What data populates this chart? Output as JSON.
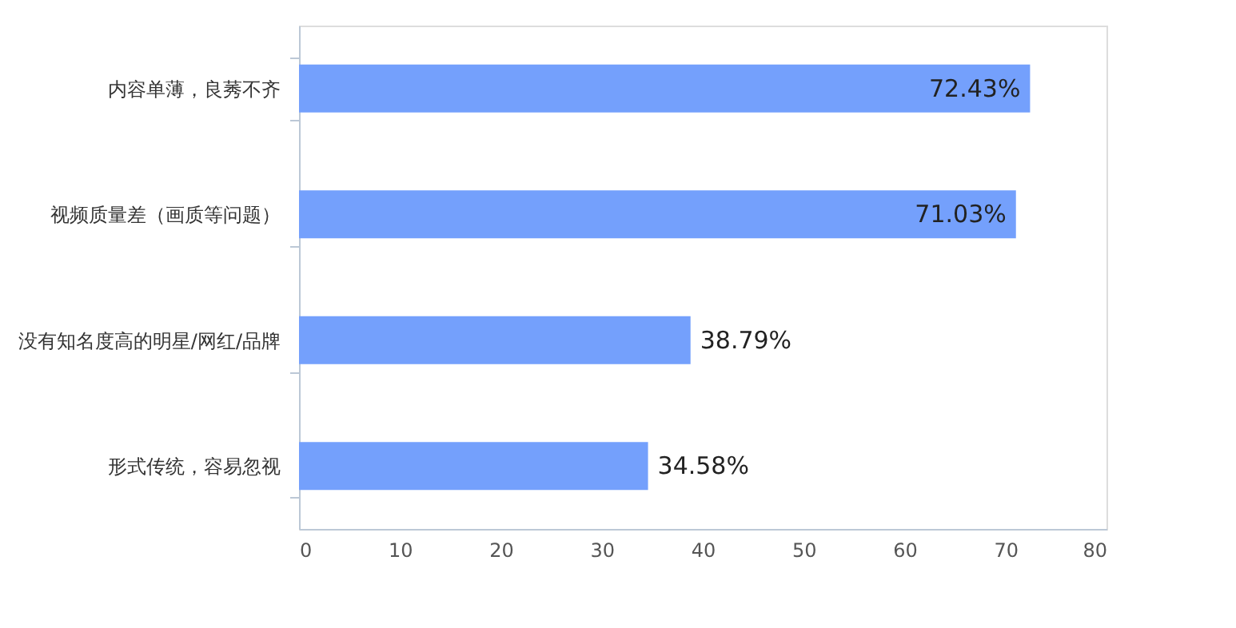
{
  "chart_data": {
    "type": "bar",
    "orientation": "horizontal",
    "categories": [
      "内容单薄，良莠不齐",
      "视频质量差（画质等问题）",
      "没有知名度高的明星/网红/品牌",
      "形式传统，容易忽视"
    ],
    "values": [
      72.43,
      71.03,
      38.79,
      34.58
    ],
    "value_labels": [
      "72.43%",
      "71.03%",
      "38.79%",
      "34.58%"
    ],
    "color": "#74a0fc",
    "xlim": [
      0,
      80
    ],
    "xticks": [
      0,
      10,
      20,
      30,
      40,
      50,
      60,
      70,
      80
    ],
    "grid": false
  }
}
